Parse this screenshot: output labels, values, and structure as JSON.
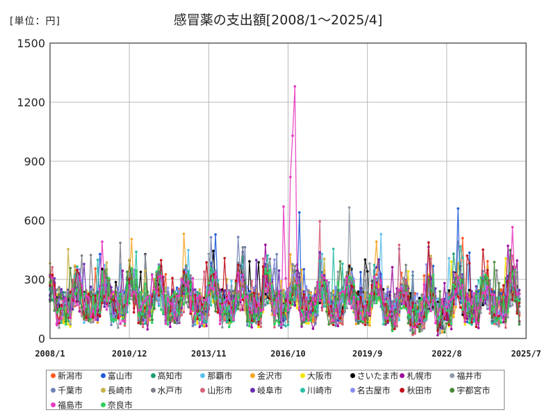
{
  "unit_label": "[単位：円]",
  "chart_data": {
    "type": "line",
    "title": "感冒薬の支出額[2008/1～2025/4]",
    "xlabel": "",
    "ylabel": "単位：円",
    "ylim": [
      0,
      1500
    ],
    "yticks": [
      "0",
      "300",
      "600",
      "900",
      "1200",
      "1500"
    ],
    "xticks": [
      "2008/1",
      "2010/12",
      "2013/11",
      "2016/10",
      "2019/9",
      "2022/8",
      "2025/7"
    ],
    "x_range": [
      "2008/1",
      "2025/7"
    ],
    "grid": true,
    "legend_position": "bottom",
    "series": [
      {
        "name": "新潟市",
        "color": "#ff5722"
      },
      {
        "name": "富山市",
        "color": "#1e5bd8"
      },
      {
        "name": "高知市",
        "color": "#1a9e6e"
      },
      {
        "name": "那覇市",
        "color": "#5bc0eb"
      },
      {
        "name": "金沢市",
        "color": "#f5a623"
      },
      {
        "name": "大阪市",
        "color": "#f5e400"
      },
      {
        "name": "さいたま市",
        "color": "#000000"
      },
      {
        "name": "札幌市",
        "color": "#9b0e9b"
      },
      {
        "name": "福井市",
        "color": "#8e9aa6"
      },
      {
        "name": "千葉市",
        "color": "#6f83b5"
      },
      {
        "name": "長崎市",
        "color": "#c9b24a"
      },
      {
        "name": "水戸市",
        "color": "#7d7d8a"
      },
      {
        "name": "山形市",
        "color": "#d9627a"
      },
      {
        "name": "岐阜市",
        "color": "#6a2fb0"
      },
      {
        "name": "川崎市",
        "color": "#2bbfa6"
      },
      {
        "name": "名古屋市",
        "color": "#8a8ef0"
      },
      {
        "name": "秋田市",
        "color": "#c0101a"
      },
      {
        "name": "宇都宮市",
        "color": "#4a8a3a"
      },
      {
        "name": "福島市",
        "color": "#e83ac0"
      },
      {
        "name": "奈良市",
        "color": "#2ed05a"
      }
    ],
    "annotations": [
      {
        "series": "福島市",
        "date": "2017/1",
        "value": 1280,
        "note": "peak"
      },
      {
        "series": "福島市",
        "date": "2016/12",
        "value": 1030
      },
      {
        "series": "福島市",
        "date": "2016/11",
        "value": 820
      },
      {
        "series": "福島市",
        "date": "2016/8",
        "value": 670
      },
      {
        "series": "富山市",
        "date": "2023/1",
        "value": 660
      },
      {
        "series": "福井市",
        "date": "2019/1",
        "value": 665
      },
      {
        "series": "富山市",
        "date": "2017/3",
        "value": 640
      },
      {
        "series": "山形市",
        "date": "2017/12",
        "value": 595
      },
      {
        "series": "福島市",
        "date": "2025/1",
        "value": 565
      }
    ]
  }
}
